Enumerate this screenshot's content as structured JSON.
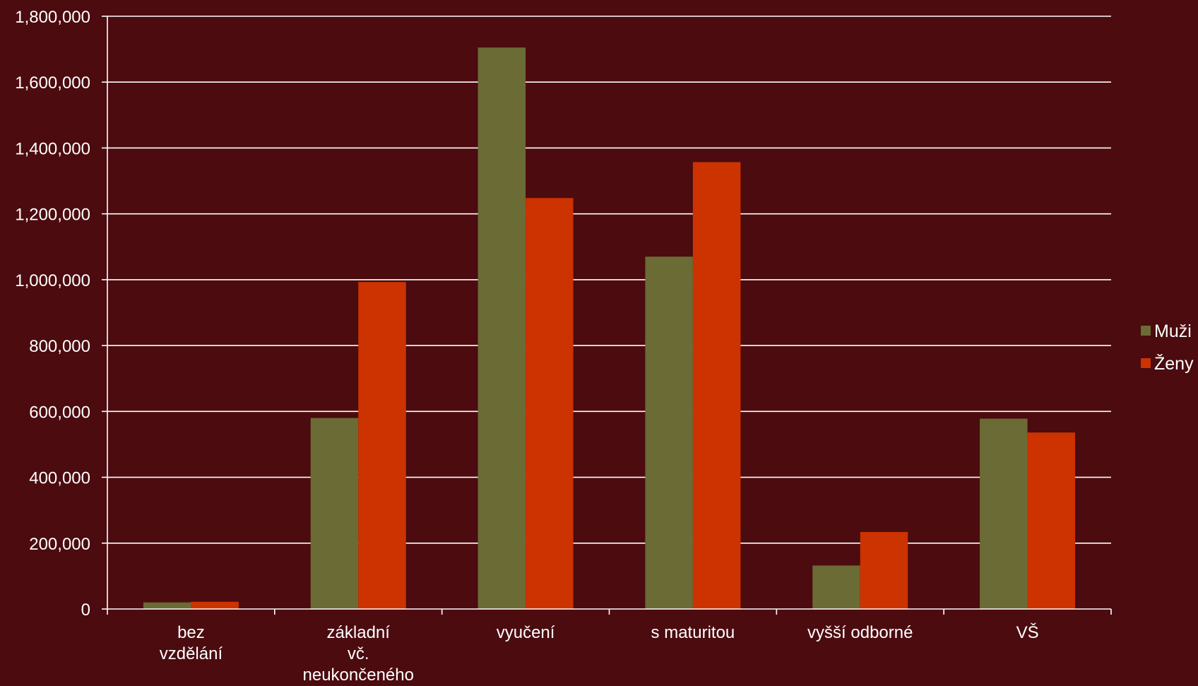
{
  "chart_data": {
    "type": "bar",
    "title": "",
    "xlabel": "",
    "ylabel": "",
    "ylim": [
      0,
      1800000
    ],
    "yticks": [
      0,
      200000,
      400000,
      600000,
      800000,
      1000000,
      1200000,
      1400000,
      1600000,
      1800000
    ],
    "ytick_labels": [
      "0",
      "200,000",
      "400,000",
      "600,000",
      "800,000",
      "1,000,000",
      "1,200,000",
      "1,400,000",
      "1,600,000",
      "1,800,000"
    ],
    "categories": [
      [
        "bez",
        "vzdělání"
      ],
      [
        "základní",
        "vč.",
        "neukončeného"
      ],
      [
        "vyučení"
      ],
      [
        "s maturitou"
      ],
      [
        "vyšší odborné"
      ],
      [
        "VŠ"
      ]
    ],
    "series": [
      {
        "name": "Muži",
        "color": "#6b6b35",
        "values": [
          20000,
          580000,
          1705000,
          1070000,
          132000,
          578000
        ]
      },
      {
        "name": "Ženy",
        "color": "#cc3300",
        "values": [
          22000,
          993000,
          1248000,
          1357000,
          234000,
          536000
        ]
      }
    ],
    "grid": true,
    "legend_position": "right",
    "colors": {
      "background": "#4b0b0f",
      "gridline": "#ffffff",
      "text": "#ffffff"
    }
  }
}
